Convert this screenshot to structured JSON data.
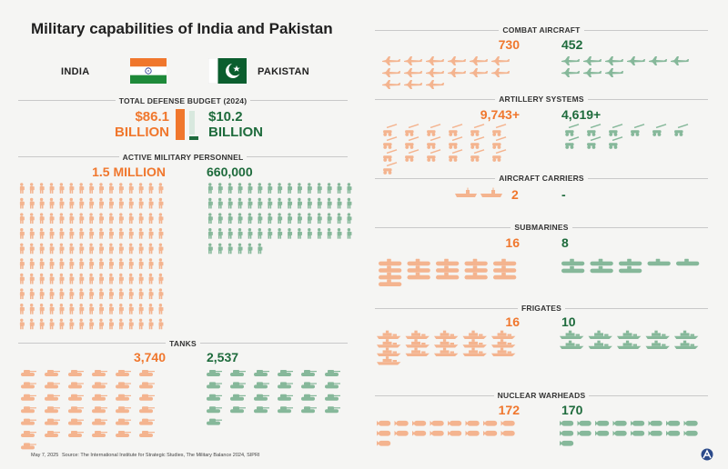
{
  "title": "Military capabilities of India and Pakistan",
  "countries": {
    "india": "INDIA",
    "pakistan": "PAKISTAN"
  },
  "colors": {
    "india": "#f0772d",
    "india_icon": "#f4b48f",
    "pakistan": "#1e6b3c",
    "pakistan_icon": "#86b89a"
  },
  "footer": {
    "date": "May 7, 2025",
    "source": "Source: The International Institute for Strategic Studies, The Military Balance 2024, SIPRI"
  },
  "chart_data": [
    {
      "type": "bar",
      "title": "TOTAL DEFENSE BUDGET (2024)",
      "categories": [
        "INDIA",
        "PAKISTAN"
      ],
      "values": [
        86.1,
        10.2
      ],
      "labels": {
        "india_value": "$86.1",
        "india_unit": "BILLION",
        "pakistan_value": "$10.2",
        "pakistan_unit": "BILLION"
      }
    },
    {
      "type": "table",
      "title": "ACTIVE MILITARY PERSONNEL",
      "categories": [
        "INDIA",
        "PAKISTAN"
      ],
      "values": [
        1500000,
        660000
      ],
      "labels": {
        "india": "1.5 MILLION",
        "pakistan": "660,000"
      }
    },
    {
      "type": "table",
      "title": "TANKS",
      "categories": [
        "INDIA",
        "PAKISTAN"
      ],
      "values": [
        3740,
        2537
      ],
      "labels": {
        "india": "3,740",
        "pakistan": "2,537"
      }
    },
    {
      "type": "table",
      "title": "COMBAT AIRCRAFT",
      "categories": [
        "INDIA",
        "PAKISTAN"
      ],
      "values": [
        730,
        452
      ],
      "labels": {
        "india": "730",
        "pakistan": "452"
      }
    },
    {
      "type": "table",
      "title": "ARTILLERY SYSTEMS",
      "categories": [
        "INDIA",
        "PAKISTAN"
      ],
      "values": [
        9743,
        4619
      ],
      "labels": {
        "india": "9,743+",
        "pakistan": "4,619+"
      }
    },
    {
      "type": "table",
      "title": "AIRCRAFT CARRIERS",
      "categories": [
        "INDIA",
        "PAKISTAN"
      ],
      "values": [
        2,
        0
      ],
      "labels": {
        "india": "2",
        "pakistan": "-"
      }
    },
    {
      "type": "table",
      "title": "SUBMARINES",
      "categories": [
        "INDIA",
        "PAKISTAN"
      ],
      "values": [
        16,
        8
      ],
      "labels": {
        "india": "16",
        "pakistan": "8"
      }
    },
    {
      "type": "table",
      "title": "FRIGATES",
      "categories": [
        "INDIA",
        "PAKISTAN"
      ],
      "values": [
        16,
        10
      ],
      "labels": {
        "india": "16",
        "pakistan": "10"
      }
    },
    {
      "type": "table",
      "title": "NUCLEAR WARHEADS",
      "categories": [
        "INDIA",
        "PAKISTAN"
      ],
      "values": [
        172,
        170
      ],
      "labels": {
        "india": "172",
        "pakistan": "170"
      }
    }
  ]
}
